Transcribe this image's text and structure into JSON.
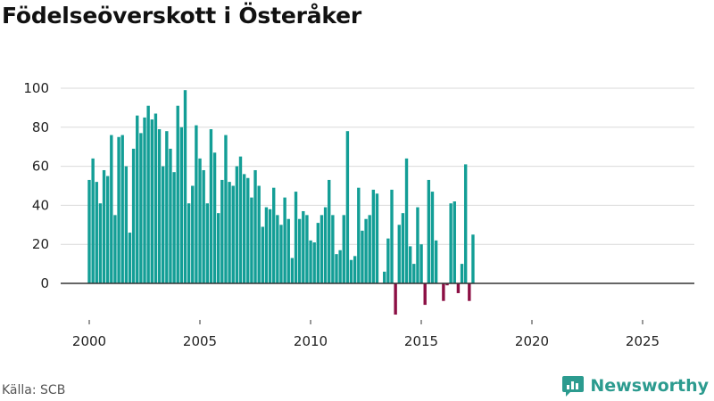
{
  "title": "Födelseöverskott i Österåker",
  "source": "Källa: SCB",
  "brand": {
    "name": "Newsworthy",
    "icon": "newsworthy-logo-icon"
  },
  "colors": {
    "positive": "#139e96",
    "negative": "#8c0f44",
    "grid": "#d9d9d9",
    "axis": "#333333"
  },
  "chart_data": {
    "type": "bar",
    "title": "Födelseöverskott i Österåker",
    "xlabel": "",
    "ylabel": "",
    "xlim": [
      1999.3,
      2027.3
    ],
    "ylim": [
      -18,
      105
    ],
    "yticks": [
      0,
      20,
      40,
      60,
      80,
      100
    ],
    "ytick_labels": [
      "0",
      "20",
      "40",
      "60",
      "80",
      "100"
    ],
    "xticks": [
      2000,
      2005,
      2010,
      2015,
      2020,
      2025
    ],
    "xtick_labels": [
      "2000",
      "2005",
      "2010",
      "2015",
      "2020",
      "2025"
    ],
    "grid": true,
    "frequency": "monthly",
    "start": 2000.0,
    "step": 0.1667,
    "values": [
      53,
      64,
      52,
      41,
      58,
      55,
      76,
      35,
      75,
      76,
      60,
      26,
      69,
      86,
      77,
      85,
      91,
      84,
      87,
      79,
      60,
      78,
      69,
      57,
      91,
      80,
      99,
      41,
      50,
      81,
      64,
      58,
      41,
      79,
      67,
      36,
      53,
      76,
      52,
      50,
      60,
      65,
      56,
      54,
      44,
      58,
      50,
      29,
      39,
      38,
      49,
      35,
      30,
      44,
      33,
      13,
      47,
      33,
      37,
      35,
      22,
      21,
      31,
      35,
      39,
      53,
      35,
      15,
      17,
      35,
      78,
      12,
      14,
      49,
      27,
      33,
      35,
      48,
      46,
      0,
      6,
      23,
      48,
      -16,
      30,
      36,
      64,
      19,
      10,
      39,
      20,
      -11,
      53,
      47,
      22,
      0,
      -9,
      -1,
      41,
      42,
      -5,
      10,
      61,
      -9,
      25
    ]
  }
}
